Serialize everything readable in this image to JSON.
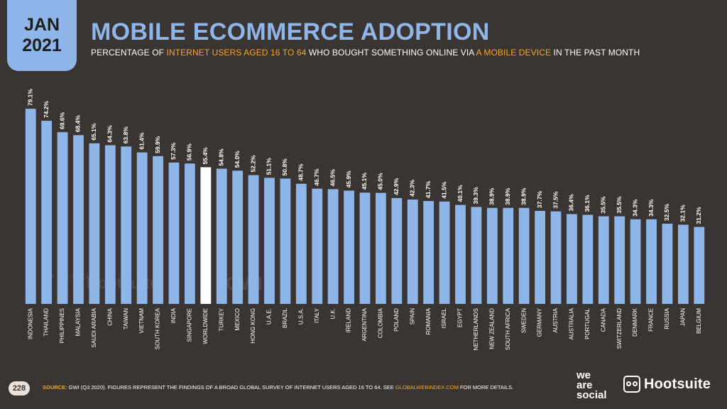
{
  "date_tab": {
    "month": "JAN",
    "year": "2021"
  },
  "title": "MOBILE ECOMMERCE ADOPTION",
  "subtitle": {
    "part1": "PERCENTAGE OF ",
    "highlight1": "INTERNET USERS AGED 16 TO 64",
    "part2": " WHO BOUGHT SOMETHING ONLINE VIA ",
    "highlight2": "A MOBILE DEVICE",
    "part3": " IN THE PAST MONTH"
  },
  "colors": {
    "bar": "#8fb6e8",
    "highlight_bar": "#ffffff",
    "accent": "#f5a623",
    "background": "#3a3533"
  },
  "chart_data": {
    "type": "bar",
    "categories": [
      "INDONESIA",
      "THAILAND",
      "PHILIPPINES",
      "MALAYSIA",
      "SAUDI ARABIA",
      "CHINA",
      "TAIWAN",
      "VIETNAM",
      "SOUTH KOREA",
      "INDIA",
      "SINGAPORE",
      "WORLDWIDE",
      "TURKEY",
      "MEXICO",
      "HONG KONG",
      "U.A.E.",
      "BRAZIL",
      "U.S.A.",
      "ITALY",
      "U.K.",
      "IRELAND",
      "ARGENTINA",
      "COLOMBIA",
      "POLAND",
      "SPAIN",
      "ROMANIA",
      "ISRAEL",
      "EGYPT",
      "NETHERLANDS",
      "NEW ZEALAND",
      "SOUTH AFRICA",
      "SWEDEN",
      "GERMANY",
      "AUSTRIA",
      "AUSTRALIA",
      "PORTUGAL",
      "CANADA",
      "SWITZERLAND",
      "DENMARK",
      "FRANCE",
      "RUSSIA",
      "JAPAN",
      "BELGIUM"
    ],
    "values": [
      79.1,
      74.2,
      69.6,
      68.4,
      65.1,
      64.3,
      63.8,
      61.4,
      59.9,
      57.3,
      56.9,
      55.4,
      54.8,
      54.0,
      52.2,
      51.1,
      50.8,
      48.7,
      46.7,
      46.5,
      45.9,
      45.1,
      45.0,
      42.9,
      42.3,
      41.7,
      41.5,
      40.1,
      39.3,
      38.9,
      38.9,
      38.9,
      37.7,
      37.5,
      36.4,
      36.1,
      35.5,
      35.5,
      34.3,
      34.3,
      32.5,
      32.1,
      31.2
    ],
    "value_labels": [
      "79.1%",
      "74.2%",
      "69.6%",
      "68.4%",
      "65.1%",
      "64.3%",
      "63.8%",
      "61.4%",
      "59.9%",
      "57.3%",
      "56.9%",
      "55.4%",
      "54.8%",
      "54.0%",
      "52.2%",
      "51.1%",
      "50.8%",
      "48.7%",
      "46.7%",
      "46.5%",
      "45.9%",
      "45.1%",
      "45.0%",
      "42.9%",
      "42.3%",
      "41.7%",
      "41.5%",
      "40.1%",
      "39.3%",
      "38.9%",
      "38.9%",
      "38.9%",
      "37.7%",
      "37.5%",
      "36.4%",
      "36.1%",
      "35.5%",
      "35.5%",
      "34.3%",
      "34.3%",
      "32.5%",
      "32.1%",
      "31.2%"
    ],
    "highlight_category": "WORLDWIDE",
    "ylim": [
      0,
      80
    ],
    "unit": "%",
    "grid": false,
    "legend": "none"
  },
  "watermarks": {
    "was": "we are social",
    "hootsuite": "Hootsuite",
    "gwi": "GWI."
  },
  "footer": {
    "page_number": "228",
    "source_label": "SOURCE:",
    "source_text": " GWI (Q3 2020). FIGURES REPRESENT THE FINDINGS OF A BROAD GLOBAL SURVEY OF INTERNET USERS AGED 16 TO 64. SEE ",
    "source_link": "GLOBALWEBINDEX.COM",
    "source_end": " FOR MORE DETAILS."
  },
  "logos": {
    "we_are_social": [
      "we",
      "are",
      "social"
    ],
    "hootsuite": "Hootsuite",
    "hootsuite_icon": "owl-icon"
  }
}
